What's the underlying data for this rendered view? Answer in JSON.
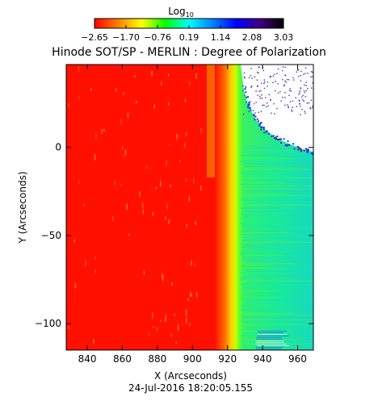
{
  "chart_data": {
    "type": "heatmap",
    "title": "Hinode SOT/SP - MERLIN : Degree of Polarization",
    "xlabel": "X (Arcseconds)",
    "ylabel": "Y (Arcseconds)",
    "footer": "24-Jul-2016 18:20:05.155",
    "xlim": [
      828,
      969
    ],
    "ylim": [
      -115,
      47
    ],
    "x_ticks": [
      840,
      860,
      880,
      900,
      920,
      940,
      960
    ],
    "y_ticks": [
      0,
      -50,
      -100
    ],
    "colorbar": {
      "label_base": "Log",
      "label_sub": "10",
      "range": [
        -2.65,
        3.03
      ],
      "ticks": [
        "-2.65",
        "-1.70",
        "-0.76",
        "0.19",
        "1.14",
        "2.08",
        "3.03"
      ],
      "colors": [
        "#ff0000",
        "#ff8000",
        "#ffff00",
        "#00ff00",
        "#00ffff",
        "#0080ff",
        "#0000ff",
        "#400080",
        "#000000"
      ]
    },
    "regions": [
      {
        "name": "disk",
        "x": [
          828,
          918
        ],
        "value": -2.65,
        "color": "#ff1000"
      },
      {
        "name": "limb-bright-band",
        "x": [
          909,
          915
        ],
        "value": -2.0,
        "color": "#ff6a00"
      },
      {
        "name": "limb-edge",
        "x": [
          918,
          922
        ],
        "value": -0.9,
        "color": "#ffcc00"
      },
      {
        "name": "off-limb",
        "x": [
          922,
          969
        ],
        "value": 0.5,
        "color": "#28e880"
      },
      {
        "name": "off-limb-top",
        "x": [
          924,
          969
        ],
        "y": [
          0,
          47
        ],
        "value": 3.03,
        "color": "#ffffff"
      }
    ]
  }
}
